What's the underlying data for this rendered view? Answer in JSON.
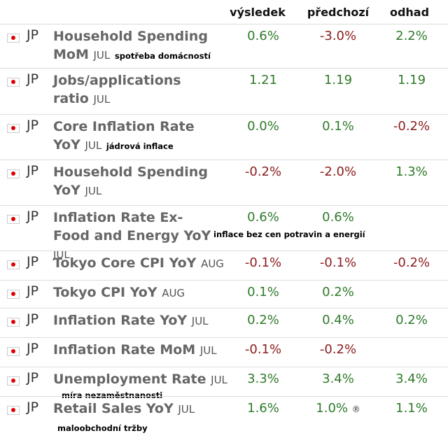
{
  "table": {
    "header": [
      "výsledek",
      "předchozí",
      "odhad"
    ],
    "rows": [
      {
        "country": "JP",
        "name": "Household Spending MoM",
        "period": "JUL",
        "note": "spotřeba domácností",
        "actual": "0.6%",
        "previous": "-3.0%",
        "forecast": "2.2%"
      },
      {
        "country": "JP",
        "name": "Jobs/applications ratio",
        "period": "JUL",
        "actual": "1.21",
        "previous": "1.19",
        "forecast": "1.19"
      },
      {
        "country": "JP",
        "name": "Core Inflation Rate YoY",
        "period": "JUL",
        "note": "jádrová inflace",
        "actual": "0.0%",
        "previous": "0.1%",
        "forecast": "-0.2%"
      },
      {
        "country": "JP",
        "name": "Household Spending YoY",
        "period": "JUL",
        "actual": "-0.2%",
        "previous": "-2.0%",
        "forecast": "1.3%"
      },
      {
        "country": "JP",
        "name": "Inflation Rate Ex-Food and Energy YoY",
        "period": "JUL",
        "note": "inflace bez cen potravin a energií",
        "actual": "0.6%",
        "previous": "0.6%"
      },
      {
        "country": "JP",
        "name": "Tokyo Core CPI YoY",
        "period": "AUG",
        "actual": "-0.1%",
        "previous": "-0.1%",
        "forecast": "-0.2%"
      },
      {
        "country": "JP",
        "name": "Tokyo CPI YoY",
        "period": "AUG",
        "actual": "0.1%",
        "previous": "0.2%"
      },
      {
        "country": "JP",
        "name": "Inflation Rate YoY",
        "period": "JUL",
        "actual": "0.2%",
        "previous": "0.4%",
        "forecast": "0.2%"
      },
      {
        "country": "JP",
        "name": "Inflation Rate MoM",
        "period": "JUL",
        "actual": "-0.1%",
        "previous": "-0.2%"
      },
      {
        "country": "JP",
        "name": "Unemployment Rate",
        "period": "JUL",
        "note": "míra nezaměstnanosti",
        "actual": "3.3%",
        "previous": "3.4%",
        "forecast": "3.4%"
      },
      {
        "country": "JP",
        "name": "Retail Sales YoY",
        "period": "JUL",
        "note": "maloobchodní tržby",
        "actual": "1.6%",
        "previous": "1.0%",
        "previous_mark": "®",
        "forecast": "1.1%"
      }
    ]
  }
}
